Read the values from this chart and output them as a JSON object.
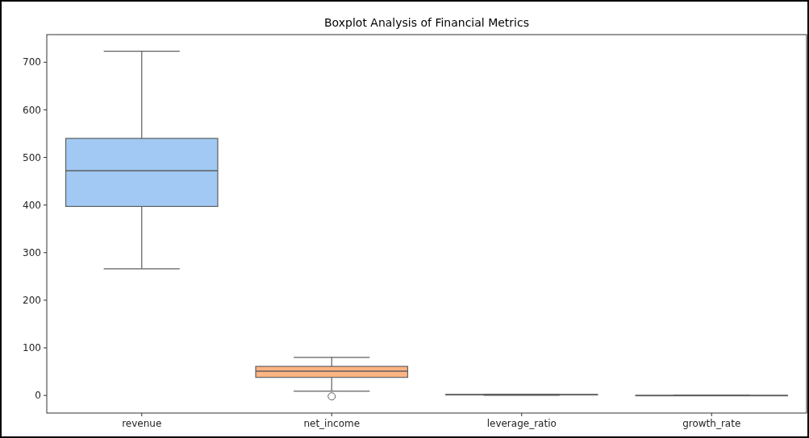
{
  "chart_data": {
    "type": "box",
    "title": "Boxplot Analysis of Financial Metrics",
    "categories": [
      "revenue",
      "net_income",
      "leverage_ratio",
      "growth_rate"
    ],
    "colors": [
      "#a1c9f4",
      "#ffb482",
      "#8de5a1",
      "#ff9f9b"
    ],
    "boxes": [
      {
        "low": 266,
        "q1": 397,
        "median": 472,
        "q3": 540,
        "high": 723
      },
      {
        "low": 9,
        "q1": 38,
        "median": 51,
        "q3": 61,
        "high": 80,
        "outliers": [
          -2
        ]
      },
      {
        "low": 0.5,
        "q1": 1,
        "median": 1.5,
        "q3": 2,
        "high": 2.5
      },
      {
        "low": -0.1,
        "q1": -0.05,
        "median": 0,
        "q3": 0.05,
        "high": 0.1
      }
    ],
    "ylim": [
      -37,
      758
    ],
    "yticks": [
      0,
      100,
      200,
      300,
      400,
      500,
      600,
      700
    ],
    "grid": false
  }
}
